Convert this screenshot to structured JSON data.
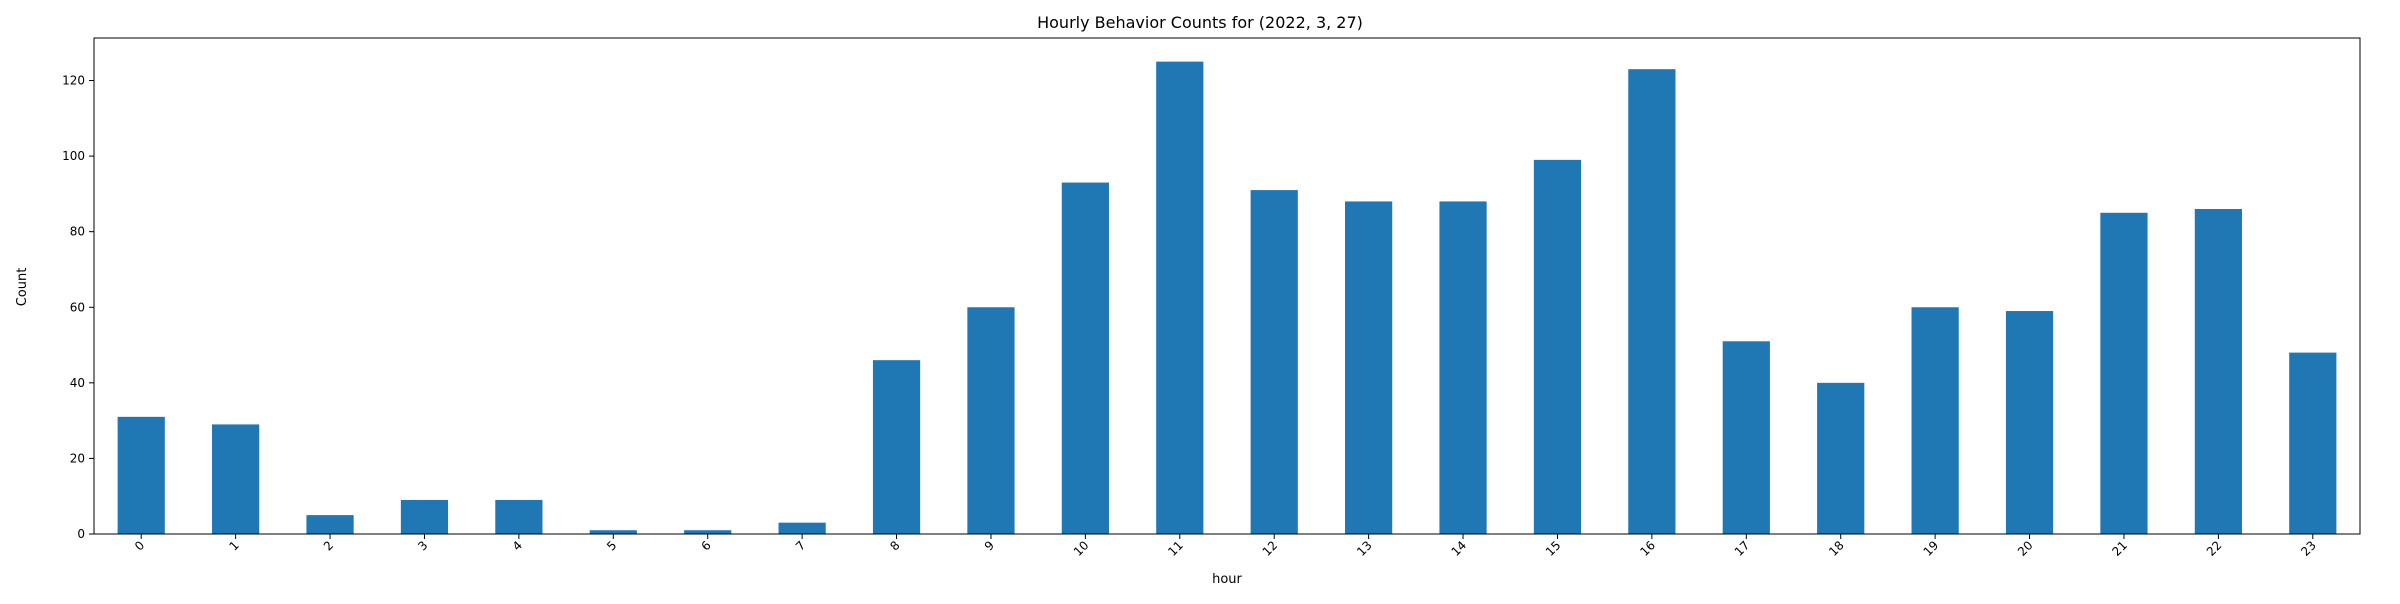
{
  "chart_data": {
    "type": "bar",
    "title": "Hourly Behavior Counts for (2022, 3, 27)",
    "xlabel": "hour",
    "ylabel": "Count",
    "categories": [
      "0",
      "1",
      "2",
      "3",
      "4",
      "5",
      "6",
      "7",
      "8",
      "9",
      "10",
      "11",
      "12",
      "13",
      "14",
      "15",
      "16",
      "17",
      "18",
      "19",
      "20",
      "21",
      "22",
      "23"
    ],
    "values": [
      31,
      29,
      5,
      9,
      9,
      1,
      1,
      3,
      46,
      60,
      93,
      125,
      91,
      88,
      88,
      99,
      123,
      51,
      40,
      60,
      59,
      85,
      86,
      48
    ],
    "ylim": [
      0,
      131.25
    ],
    "yticks": [
      0,
      20,
      40,
      60,
      80,
      100,
      120
    ],
    "bar_color": "#1f77b4",
    "grid": false,
    "legend": "none"
  }
}
